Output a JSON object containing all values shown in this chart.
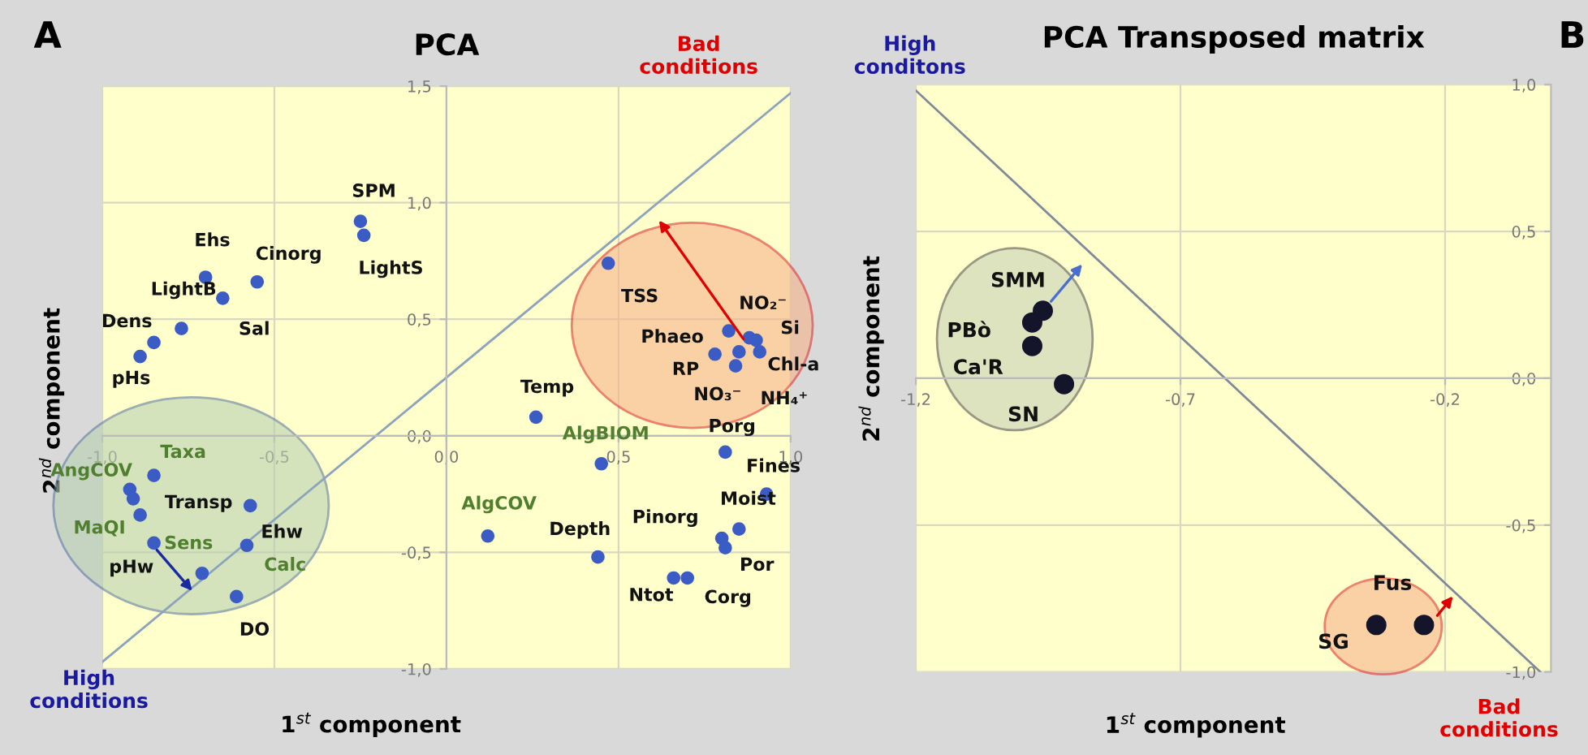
{
  "chart_data": [
    {
      "type": "scatter",
      "title": "PCA",
      "xlabel": "1$^{st}$ component",
      "ylabel": "2$^{nd}$ component",
      "xlim": [
        -1.0,
        1.0
      ],
      "ylim": [
        -1.0,
        1.5
      ],
      "xticks": [
        {
          "value": -1.0,
          "label": "-1,0"
        },
        {
          "value": -0.5,
          "label": "-0,5"
        },
        {
          "value": 0.0,
          "label": "0,0"
        },
        {
          "value": 0.5,
          "label": "0,5"
        },
        {
          "value": 1.0,
          "label": "1,0"
        }
      ],
      "yticks": [
        {
          "value": -1.0,
          "label": "-1,0"
        },
        {
          "value": -0.5,
          "label": "-0,5"
        },
        {
          "value": 0.0,
          "label": "0,0"
        },
        {
          "value": 0.5,
          "label": "0,5"
        },
        {
          "value": 1.0,
          "label": "1,0"
        },
        {
          "value": 1.5,
          "label": "1,5"
        }
      ],
      "grid": true,
      "series": [
        {
          "marker": "circle",
          "color": "#3b5cc4",
          "x": [
            -0.25,
            -0.24,
            -0.7,
            -0.55,
            -0.77,
            -0.65,
            -0.85,
            -0.89,
            -0.85,
            -0.92,
            -0.91,
            -0.89,
            -0.85,
            -0.57,
            -0.58,
            -0.71,
            -0.61,
            0.47,
            0.82,
            0.88,
            0.9,
            0.91,
            0.78,
            0.84,
            0.85,
            0.26,
            0.45,
            0.12,
            0.44,
            0.81,
            0.93,
            0.85,
            0.8,
            0.81,
            0.66,
            0.7
          ],
          "values": [
            0.92,
            0.86,
            0.68,
            0.66,
            0.46,
            0.59,
            0.4,
            0.34,
            -0.17,
            -0.23,
            -0.27,
            -0.34,
            -0.46,
            -0.3,
            -0.47,
            -0.59,
            -0.69,
            0.74,
            0.45,
            0.42,
            0.41,
            0.36,
            0.35,
            0.3,
            0.36,
            0.08,
            -0.12,
            -0.43,
            -0.52,
            -0.07,
            -0.25,
            -0.4,
            -0.44,
            -0.48,
            -0.61,
            -0.61
          ]
        },
        {
          "type": "line",
          "marker": "none",
          "color": "#8ca3bd",
          "x": [
            -1.0,
            1.0
          ],
          "values": [
            -0.97,
            1.47
          ]
        }
      ],
      "annotations": [
        {
          "text": "SPM",
          "x": -0.25,
          "y": 0.92
        },
        {
          "text": "LightS",
          "x": -0.24,
          "y": 0.86
        },
        {
          "text": "Ehs",
          "x": -0.7,
          "y": 0.68
        },
        {
          "text": "Cinorg",
          "x": -0.55,
          "y": 0.66
        },
        {
          "text": "LightB",
          "x": -0.77,
          "y": 0.46
        },
        {
          "text": "Sal",
          "x": -0.65,
          "y": 0.59
        },
        {
          "text": "Dens",
          "x": -0.85,
          "y": 0.4
        },
        {
          "text": "pHs",
          "x": -0.89,
          "y": 0.34
        },
        {
          "text": "Taxa",
          "x": -0.85,
          "y": -0.17
        },
        {
          "text": "AngCOV",
          "x": -0.92,
          "y": -0.23
        },
        {
          "text": "Transp",
          "x": -0.91,
          "y": -0.27
        },
        {
          "text": "MaQI",
          "x": -0.89,
          "y": -0.34
        },
        {
          "text": "pHw",
          "x": -0.85,
          "y": -0.46
        },
        {
          "text": "Ehw",
          "x": -0.57,
          "y": -0.3
        },
        {
          "text": "Calc",
          "x": -0.58,
          "y": -0.47
        },
        {
          "text": "Sens",
          "x": -0.71,
          "y": -0.59
        },
        {
          "text": "DO",
          "x": -0.61,
          "y": -0.69
        },
        {
          "text": "TSS",
          "x": 0.47,
          "y": 0.74
        },
        {
          "text": "Phaeo",
          "x": 0.82,
          "y": 0.45
        },
        {
          "text": "NO₂⁻",
          "x": 0.88,
          "y": 0.42
        },
        {
          "text": "Si",
          "x": 0.9,
          "y": 0.41
        },
        {
          "text": "Chl-a",
          "x": 0.91,
          "y": 0.36
        },
        {
          "text": "RP",
          "x": 0.78,
          "y": 0.35
        },
        {
          "text": "NO₃⁻",
          "x": 0.84,
          "y": 0.3
        },
        {
          "text": "NH₄⁺",
          "x": 0.85,
          "y": 0.36
        },
        {
          "text": "Temp",
          "x": 0.26,
          "y": 0.08
        },
        {
          "text": "AlgBIOM",
          "x": 0.45,
          "y": -0.12
        },
        {
          "text": "AlgCOV",
          "x": 0.12,
          "y": -0.43
        },
        {
          "text": "Depth",
          "x": 0.44,
          "y": -0.52
        },
        {
          "text": "Porg",
          "x": 0.81,
          "y": -0.07
        },
        {
          "text": "Fines",
          "x": 0.93,
          "y": -0.25
        },
        {
          "text": "Moist",
          "x": 0.85,
          "y": -0.4
        },
        {
          "text": "Pinorg",
          "x": 0.8,
          "y": -0.44
        },
        {
          "text": "Por",
          "x": 0.81,
          "y": -0.48
        },
        {
          "text": "Ntot",
          "x": 0.66,
          "y": -0.61
        },
        {
          "text": "Corg",
          "x": 0.7,
          "y": -0.61
        },
        "A",
        "Bad\nconditions",
        "High\nconditions"
      ]
    },
    {
      "type": "scatter",
      "title": "PCA Transposed matrix",
      "xlabel": "1$^{st}$ component",
      "ylabel": "2$^{nd}$ component",
      "xlim": [
        -1.2,
        0.0
      ],
      "ylim": [
        -1.0,
        1.0
      ],
      "xticks": [
        {
          "value": -1.2,
          "label": "-1,2"
        },
        {
          "value": -0.7,
          "label": "-0,7"
        },
        {
          "value": -0.2,
          "label": "-0,2"
        }
      ],
      "yticks": [
        {
          "value": -1.0,
          "label": "-1,0"
        },
        {
          "value": -0.5,
          "label": "-0,5"
        },
        {
          "value": 0.0,
          "label": "0,0"
        },
        {
          "value": 0.5,
          "label": "0,5"
        },
        {
          "value": 1.0,
          "label": "1,0"
        }
      ],
      "grid": true,
      "series": [
        {
          "marker": "circle",
          "color": "#14142a",
          "x": [
            -0.96,
            -0.98,
            -0.98,
            -0.92,
            -0.33,
            -0.24
          ],
          "values": [
            0.23,
            0.19,
            0.11,
            -0.02,
            -0.84,
            -0.84
          ]
        },
        {
          "type": "line",
          "marker": "none",
          "color": "#7f8a99",
          "x": [
            -1.2,
            -0.02
          ],
          "values": [
            0.98,
            -1.0
          ]
        }
      ],
      "annotations": [
        {
          "text": "SMM",
          "x": -0.96,
          "y": 0.23
        },
        {
          "text": "PBò",
          "x": -0.98,
          "y": 0.19
        },
        {
          "text": "Ca'R",
          "x": -0.98,
          "y": 0.11
        },
        {
          "text": "SN",
          "x": -0.92,
          "y": -0.02
        },
        {
          "text": "SG",
          "x": -0.33,
          "y": -0.84
        },
        {
          "text": "Fus",
          "x": -0.24,
          "y": -0.84
        },
        "High\nconditons",
        "Bad\nconditions",
        "B"
      ]
    }
  ]
}
